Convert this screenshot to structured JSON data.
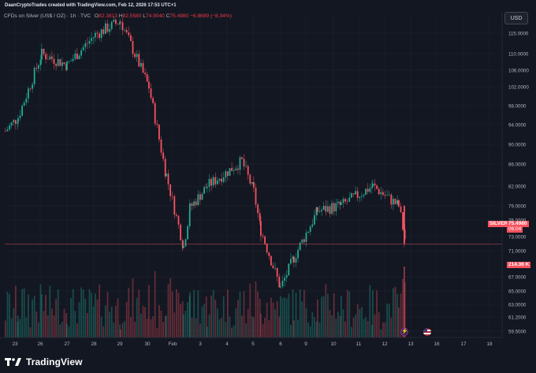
{
  "header": {
    "watermark": "DaanCryptoTrades created with TradingView.com, Feb 12, 2026 17:53 UTC+1"
  },
  "legend": {
    "symbol": "CFDs on Silver (US$ / OZ) · 1h · TVC",
    "open_label": "O",
    "open": "82.3813",
    "high_label": "H",
    "high": "82.5580",
    "low_label": "L",
    "low": "74.9040",
    "close_label": "C",
    "close": "75.4980",
    "change": "−6.8699 (−8.34%)"
  },
  "currency_button": "USD",
  "price_tag": {
    "label": "SILVER",
    "price": "75.4980",
    "countdown": "06:04"
  },
  "volume_tag": "214.36 K",
  "footer": {
    "logo_text": "TradingView"
  },
  "colors": {
    "up": "#22ab94",
    "down": "#f7525f",
    "background": "#131722",
    "grid": "#1e222d",
    "text": "#b2b5be"
  },
  "icons": {
    "lightning": "lightning-icon",
    "flag": "us-flag-icon"
  },
  "chart_data": {
    "type": "candlestick",
    "title": "",
    "interval": "1h",
    "ylim": [
      58.5,
      117.5
    ],
    "yticks": [
      "115.0000",
      "110.0000",
      "106.0000",
      "102.0000",
      "98.0000",
      "94.0000",
      "90.0000",
      "86.0000",
      "82.0000",
      "79.0000",
      "76.0000",
      "73.0000",
      "71.0000",
      "67.0000",
      "65.0000",
      "63.0000",
      "61.2000",
      "59.5000"
    ],
    "xticks": [
      "23",
      "26",
      "27",
      "28",
      "29",
      "30",
      "Feb",
      "3",
      "4",
      "5",
      "6",
      "9",
      "10",
      "11",
      "12",
      "13",
      "16",
      "17",
      "18"
    ],
    "path_keypoints": [
      {
        "date": "Jan 22",
        "price": 96.0
      },
      {
        "date": "Jan 23",
        "price": 98.5
      },
      {
        "date": "Jan 26",
        "price": 110.0
      },
      {
        "date": "Jan 27",
        "price": 108.0
      },
      {
        "date": "Jan 28",
        "price": 113.5
      },
      {
        "date": "Jan 29",
        "price": 116.0
      },
      {
        "date": "Jan 30",
        "price": 104.0
      },
      {
        "date": "Jan 30",
        "price": 88.0
      },
      {
        "date": "Feb 2",
        "price": 75.0
      },
      {
        "date": "Feb 2",
        "price": 82.0
      },
      {
        "date": "Feb 3",
        "price": 86.0
      },
      {
        "date": "Feb 4",
        "price": 90.5
      },
      {
        "date": "Feb 5",
        "price": 85.0
      },
      {
        "date": "Feb 5",
        "price": 78.0
      },
      {
        "date": "Feb 6",
        "price": 67.5
      },
      {
        "date": "Feb 6",
        "price": 73.0
      },
      {
        "date": "Feb 9",
        "price": 81.5
      },
      {
        "date": "Feb 10",
        "price": 82.5
      },
      {
        "date": "Feb 11",
        "price": 86.0
      },
      {
        "date": "Feb 12",
        "price": 82.4
      },
      {
        "date": "Feb 12",
        "price": 75.5
      }
    ],
    "last_price": 75.498,
    "last_volume": "214.36 K"
  }
}
